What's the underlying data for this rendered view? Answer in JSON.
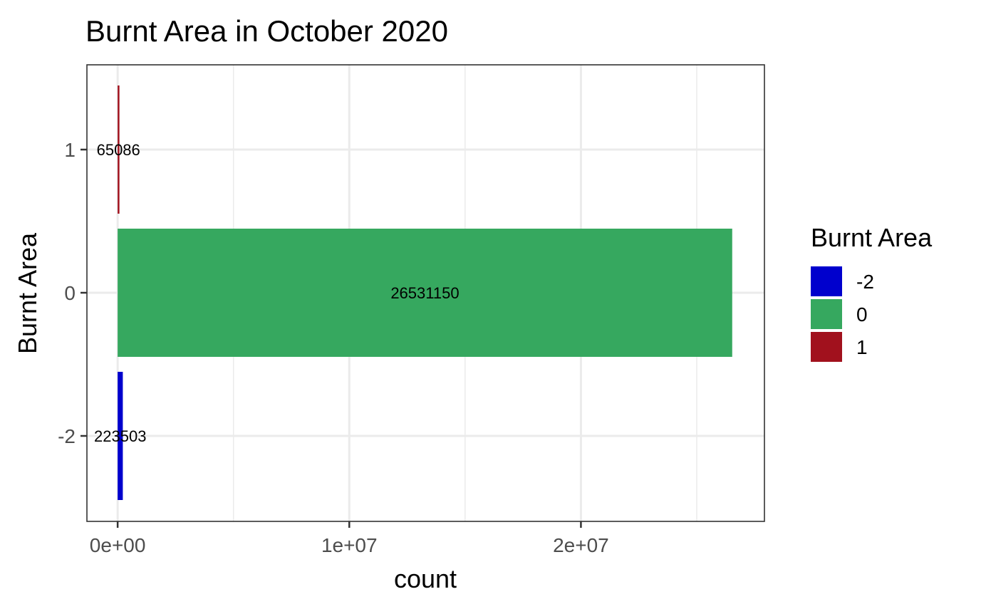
{
  "chart_data": {
    "type": "bar",
    "orientation": "horizontal",
    "title": "Burnt Area in October 2020",
    "xlabel": "count",
    "ylabel": "Burnt Area",
    "categories": [
      "-2",
      "0",
      "1"
    ],
    "values": [
      223503,
      26531150,
      65086
    ],
    "data_labels": [
      "223503",
      "26531150",
      "65086"
    ],
    "colors": [
      "#0000cd",
      "#36a85f",
      "#a1111d"
    ],
    "xlim": [
      -1326557.5,
      27922291
    ],
    "x_ticks": [
      0,
      10000000,
      20000000
    ],
    "x_tick_labels": [
      "0e+00",
      "1e+07",
      "2e+07"
    ],
    "y_ticks": [
      -2,
      0,
      1
    ],
    "y_tick_labels": [
      "-2",
      "0",
      "1"
    ],
    "grid": true,
    "legend": {
      "title": "Burnt Area",
      "position": "right",
      "entries": [
        {
          "label": "-2",
          "color": "#0000cd"
        },
        {
          "label": "0",
          "color": "#36a85f"
        },
        {
          "label": "1",
          "color": "#a1111d"
        }
      ]
    }
  }
}
